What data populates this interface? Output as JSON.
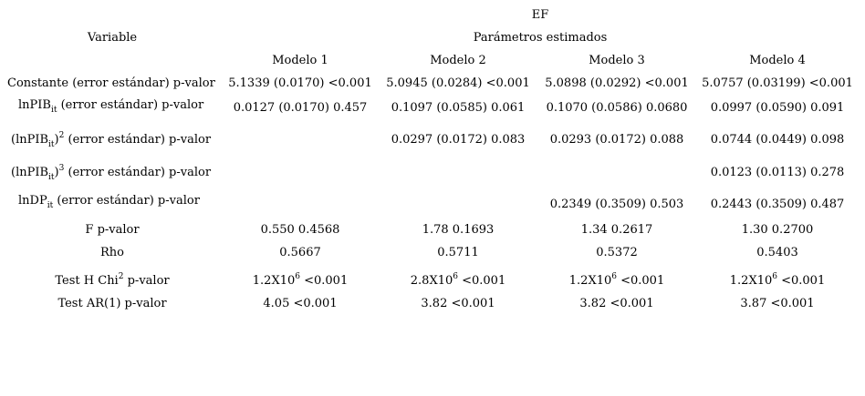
{
  "header": {
    "dependent": "EF",
    "variable_label": "Variable",
    "params_label": "Parámetros estimados",
    "models": [
      "Modelo 1",
      "Modelo 2",
      "Modelo 3",
      "Modelo 4"
    ]
  },
  "rows": {
    "constante": {
      "label": "Constante (error estándar) p-valor",
      "m1": "5.1339 (0.0170) <0.001",
      "m2": "5.0945 (0.0284) <0.001",
      "m3": "5.0898 (0.0292) <0.001",
      "m4": "5.0757 (0.03199) <0.001"
    },
    "lnpib": {
      "label_pre": "lnPIB",
      "label_sub": "it",
      "label_post": " (error estándar) p-valor",
      "m1": "0.0127 (0.0170) 0.457",
      "m2": "0.1097 (0.0585) 0.061",
      "m3": "0.1070 (0.0586) 0.0680",
      "m4": "0.0997 (0.0590) 0.091"
    },
    "lnpib2": {
      "label_pre": "(lnPIB",
      "label_sub": "it",
      "label_close": ")",
      "label_sup": "2",
      "label_post": " (error estándar) p-valor",
      "m2": "0.0297 (0.0172) 0.083",
      "m3": "0.0293 (0.0172) 0.088",
      "m4": "0.0744 (0.0449) 0.098"
    },
    "lnpib3": {
      "label_pre": "(lnPIB",
      "label_sub": "it",
      "label_close": ")",
      "label_sup": "3",
      "label_post": " (error estándar) p-valor",
      "m4": "0.0123 (0.0113) 0.278"
    },
    "lndp": {
      "label_pre": "lnDP",
      "label_sub": "it",
      "label_post": " (error estándar) p-valor",
      "m3": "0.2349 (0.3509) 0.503",
      "m4": "0.2443 (0.3509) 0.487"
    },
    "f": {
      "label": "F p-valor",
      "m1": "0.550 0.4568",
      "m2": "1.78 0.1693",
      "m3": "1.34 0.2617",
      "m4": "1.30 0.2700"
    },
    "rho": {
      "label": "Rho",
      "m1": "0.5667",
      "m2": "0.5711",
      "m3": "0.5372",
      "m4": "0.5403"
    },
    "testh": {
      "label_pre": "Test H Chi",
      "label_sup": "2",
      "label_post": " p-valor",
      "m1": {
        "base": "1.2X10",
        "exp": "6",
        "p": " <0.001"
      },
      "m2": {
        "base": "2.8X10",
        "exp": "6",
        "p": " <0.001"
      },
      "m3": {
        "base": "1.2X10",
        "exp": "6",
        "p": " <0.001"
      },
      "m4": {
        "base": "1.2X10",
        "exp": "6",
        "p": " <0.001"
      }
    },
    "testar": {
      "label": "Test AR(1) p-valor",
      "m1": "4.05 <0.001",
      "m2": "3.82 <0.001",
      "m3": "3.82 <0.001",
      "m4": "3.87 <0.001"
    }
  }
}
